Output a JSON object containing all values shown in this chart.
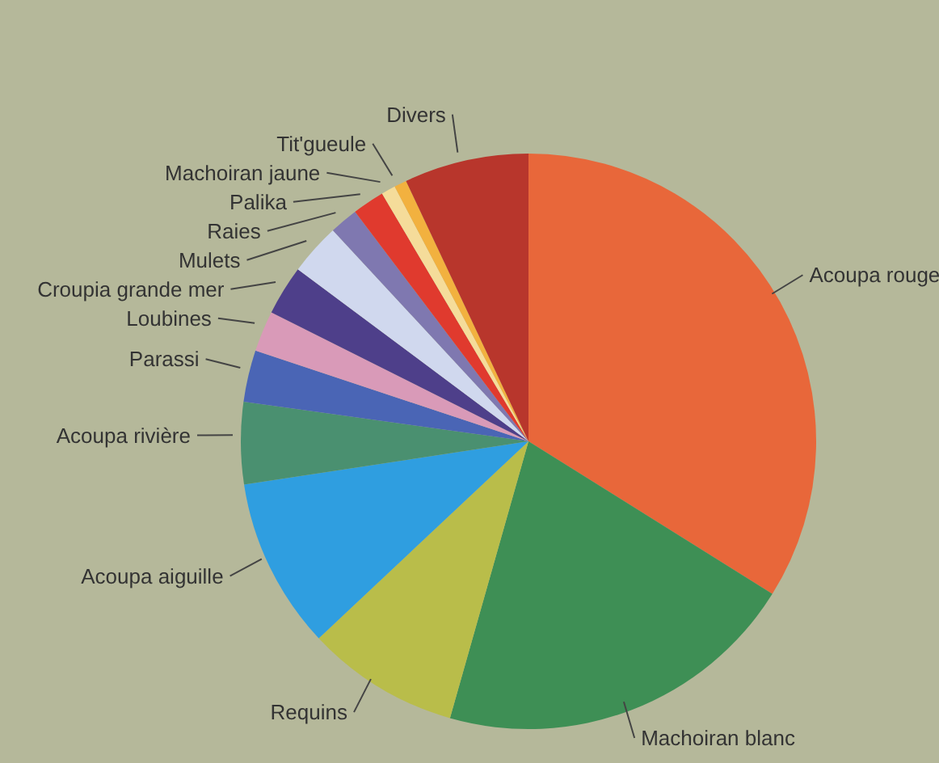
{
  "chart_data": {
    "type": "pie",
    "categories": [
      "Acoupa rouge",
      "Machoiran blanc",
      "Requins",
      "Acoupa aiguille",
      "Acoupa rivière",
      "Parassi",
      "Loubines",
      "Croupia grande mer",
      "Mulets",
      "Raies",
      "Palika",
      "Machoiran jaune",
      "Tit'gueule",
      "Divers"
    ],
    "values": [
      33.9,
      20.5,
      8.6,
      9.6,
      4.6,
      2.9,
      2.3,
      2.8,
      2.9,
      1.6,
      1.8,
      0.8,
      0.7,
      7
    ],
    "colors": [
      "#e8673a",
      "#3e8f55",
      "#b9bd4a",
      "#2f9ee0",
      "#4a9070",
      "#4a65b5",
      "#d99ab8",
      "#4e3f8a",
      "#d0d8ee",
      "#7f78b0",
      "#e03a2e",
      "#f5dc9a",
      "#f2b13f",
      "#b8362c"
    ]
  }
}
